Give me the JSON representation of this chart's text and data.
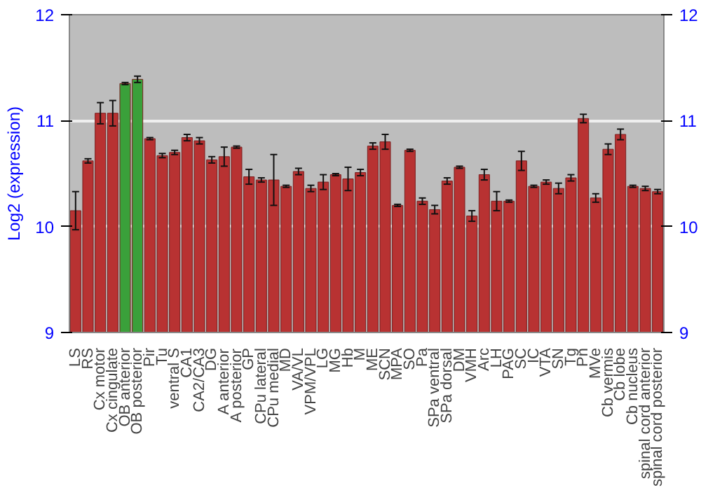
{
  "chart_data": {
    "type": "bar",
    "ylabel": "Log2 (expression)",
    "categories": [
      "LS",
      "RS",
      "Cx motor",
      "Cx cingulate",
      "OB anterior",
      "OB posterior",
      "Pir",
      "Tu",
      "ventral S",
      "CA1",
      "CA2/CA3",
      "DG",
      "A anterior",
      "A posterior",
      "GP",
      "CPu lateral",
      "CPu medial",
      "MD",
      "VA/VL",
      "VPM/VPL",
      "LG",
      "MG",
      "Hb",
      "M",
      "ME",
      "SCN",
      "MPA",
      "SO",
      "Pa",
      "SPa ventral",
      "SPa dorsal",
      "DM",
      "VMH",
      "Arc",
      "LH",
      "PAG",
      "SC",
      "IC",
      "VTA",
      "SN",
      "Tg",
      "Pn",
      "MVe",
      "Cb vermis",
      "Cb lobe",
      "Cb nucleus",
      "spinal cord anterior",
      "spinal cord posterior"
    ],
    "values": [
      10.15,
      10.62,
      11.07,
      11.07,
      11.35,
      11.39,
      10.83,
      10.67,
      10.7,
      10.84,
      10.81,
      10.63,
      10.66,
      10.75,
      10.47,
      10.44,
      10.44,
      10.38,
      10.52,
      10.36,
      10.42,
      10.49,
      10.45,
      10.51,
      10.76,
      10.8,
      10.2,
      10.72,
      10.24,
      10.16,
      10.43,
      10.56,
      10.1,
      10.49,
      10.24,
      10.24,
      10.62,
      10.38,
      10.42,
      10.36,
      10.46,
      11.02,
      10.27,
      10.73,
      10.87,
      10.38,
      10.36,
      10.33
    ],
    "errors": [
      0.18,
      0.02,
      0.1,
      0.12,
      0.01,
      0.03,
      0.01,
      0.02,
      0.02,
      0.03,
      0.03,
      0.03,
      0.09,
      0.01,
      0.07,
      0.02,
      0.24,
      0.01,
      0.03,
      0.03,
      0.07,
      0.01,
      0.11,
      0.03,
      0.03,
      0.07,
      0.01,
      0.01,
      0.03,
      0.04,
      0.03,
      0.01,
      0.05,
      0.05,
      0.09,
      0.01,
      0.09,
      0.01,
      0.02,
      0.05,
      0.03,
      0.04,
      0.04,
      0.05,
      0.05,
      0.01,
      0.02,
      0.02
    ],
    "colors": [
      "#b83232",
      "#b83232",
      "#b83232",
      "#b83232",
      "#3aa03a",
      "#3aa03a",
      "#b83232",
      "#b83232",
      "#b83232",
      "#b83232",
      "#b83232",
      "#b83232",
      "#b83232",
      "#b83232",
      "#b83232",
      "#b83232",
      "#b83232",
      "#b83232",
      "#b83232",
      "#b83232",
      "#b83232",
      "#b83232",
      "#b83232",
      "#b83232",
      "#b83232",
      "#b83232",
      "#b83232",
      "#b83232",
      "#b83232",
      "#b83232",
      "#b83232",
      "#b83232",
      "#b83232",
      "#b83232",
      "#b83232",
      "#b83232",
      "#b83232",
      "#b83232",
      "#b83232",
      "#b83232",
      "#b83232",
      "#b83232",
      "#b83232",
      "#b83232",
      "#b83232",
      "#b83232",
      "#b83232",
      "#b83232"
    ],
    "ylim": [
      9,
      12
    ],
    "yticks": [
      9,
      10,
      11,
      12
    ],
    "y2lim": [
      9,
      12
    ],
    "y2ticks": [
      9,
      10,
      11,
      12
    ],
    "grid": "y"
  }
}
